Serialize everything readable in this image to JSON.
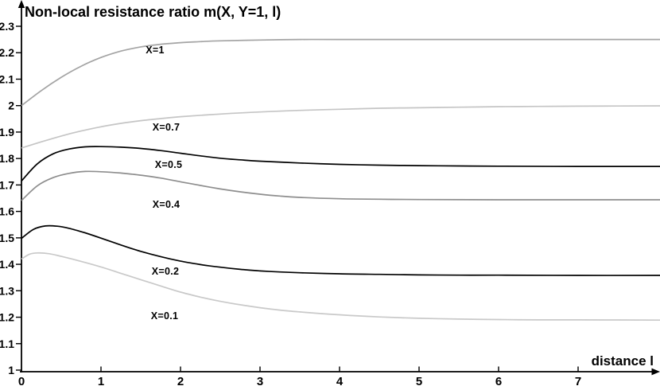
{
  "colors": {
    "background": "#ffffff",
    "axis": "#000000",
    "text": "#000000"
  },
  "chart_data": {
    "type": "line",
    "title": "Non-local resistance ratio m(X, Y=1, l)",
    "xlabel": "distance l",
    "ylabel": "",
    "grid": false,
    "legend": "inline-labels",
    "x_axis": {
      "range": [
        0,
        8.03
      ],
      "ticks": [
        0,
        1,
        2,
        3,
        4,
        5,
        6,
        7
      ]
    },
    "y_axis": {
      "range": [
        1,
        2.3
      ],
      "ticks": [
        {
          "v": 1.0,
          "label": "1"
        },
        {
          "v": 1.1,
          "label": "1.1"
        },
        {
          "v": 1.2,
          "label": "1.2"
        },
        {
          "v": 1.3,
          "label": "1.3"
        },
        {
          "v": 1.4,
          "label": "1.4"
        },
        {
          "v": 1.5,
          "label": "1.5"
        },
        {
          "v": 1.6,
          "label": "1.6"
        },
        {
          "v": 1.7,
          "label": "1.7"
        },
        {
          "v": 1.8,
          "label": "1.8"
        },
        {
          "v": 1.9,
          "label": "1.9"
        },
        {
          "v": 2.0,
          "label": "2"
        },
        {
          "v": 2.1,
          "label": "2.1"
        },
        {
          "v": 2.2,
          "label": "2.2"
        },
        {
          "v": 2.3,
          "label": "2.3"
        }
      ]
    },
    "series": [
      {
        "name": "X=1",
        "label": "X=1",
        "color": "#a4a4a4",
        "label_pos": [
          1.68,
          2.21
        ],
        "points": [
          [
            0,
            2.0
          ],
          [
            0.25,
            2.057
          ],
          [
            0.5,
            2.107
          ],
          [
            0.75,
            2.149
          ],
          [
            1,
            2.182
          ],
          [
            1.25,
            2.206
          ],
          [
            1.5,
            2.222
          ],
          [
            1.75,
            2.232
          ],
          [
            2,
            2.238
          ],
          [
            2.25,
            2.242
          ],
          [
            2.5,
            2.245
          ],
          [
            3,
            2.248
          ],
          [
            3.5,
            2.25
          ],
          [
            4,
            2.25
          ],
          [
            5,
            2.25
          ],
          [
            6,
            2.25
          ],
          [
            7,
            2.25
          ],
          [
            8.05,
            2.25
          ]
        ]
      },
      {
        "name": "X=0.7",
        "label": "X=0.7",
        "color": "#c5c5c5",
        "label_pos": [
          1.82,
          1.918
        ],
        "points": [
          [
            0,
            1.84
          ],
          [
            0.25,
            1.863
          ],
          [
            0.5,
            1.885
          ],
          [
            0.75,
            1.904
          ],
          [
            1,
            1.92
          ],
          [
            1.25,
            1.933
          ],
          [
            1.5,
            1.943
          ],
          [
            1.75,
            1.951
          ],
          [
            2,
            1.958
          ],
          [
            2.5,
            1.968
          ],
          [
            3,
            1.976
          ],
          [
            3.5,
            1.982
          ],
          [
            4,
            1.986
          ],
          [
            4.5,
            1.99
          ],
          [
            5,
            1.992
          ],
          [
            5.5,
            1.994
          ],
          [
            6,
            1.996
          ],
          [
            6.5,
            1.997
          ],
          [
            7,
            1.998
          ],
          [
            8.05,
            1.999
          ]
        ]
      },
      {
        "name": "X=0.5",
        "label": "X=0.5",
        "color": "#000000",
        "label_pos": [
          1.85,
          1.776
        ],
        "points": [
          [
            0,
            1.715
          ],
          [
            0.2,
            1.78
          ],
          [
            0.4,
            1.818
          ],
          [
            0.6,
            1.836
          ],
          [
            0.8,
            1.844
          ],
          [
            1,
            1.845
          ],
          [
            1.25,
            1.843
          ],
          [
            1.5,
            1.838
          ],
          [
            1.75,
            1.83
          ],
          [
            2,
            1.82
          ],
          [
            2.25,
            1.81
          ],
          [
            2.5,
            1.801
          ],
          [
            2.75,
            1.795
          ],
          [
            3,
            1.79
          ],
          [
            3.5,
            1.783
          ],
          [
            4,
            1.778
          ],
          [
            4.5,
            1.775
          ],
          [
            5,
            1.773
          ],
          [
            5.5,
            1.772
          ],
          [
            6,
            1.771
          ],
          [
            7,
            1.77
          ],
          [
            8.05,
            1.77
          ]
        ]
      },
      {
        "name": "X=0.4",
        "label": "X=0.4",
        "color": "#8e8e8e",
        "label_pos": [
          1.82,
          1.626
        ],
        "points": [
          [
            0,
            1.641
          ],
          [
            0.2,
            1.697
          ],
          [
            0.4,
            1.728
          ],
          [
            0.6,
            1.744
          ],
          [
            0.8,
            1.751
          ],
          [
            1,
            1.75
          ],
          [
            1.25,
            1.745
          ],
          [
            1.5,
            1.737
          ],
          [
            1.75,
            1.726
          ],
          [
            2,
            1.712
          ],
          [
            2.25,
            1.698
          ],
          [
            2.5,
            1.685
          ],
          [
            2.75,
            1.674
          ],
          [
            3,
            1.665
          ],
          [
            3.25,
            1.658
          ],
          [
            3.5,
            1.653
          ],
          [
            4,
            1.648
          ],
          [
            4.5,
            1.646
          ],
          [
            5,
            1.645
          ],
          [
            6,
            1.644
          ],
          [
            7,
            1.644
          ],
          [
            8.05,
            1.644
          ]
        ]
      },
      {
        "name": "X=0.2",
        "label": "X=0.2",
        "color": "#000000",
        "label_pos": [
          1.81,
          1.373
        ],
        "points": [
          [
            0,
            1.498
          ],
          [
            0.15,
            1.532
          ],
          [
            0.3,
            1.545
          ],
          [
            0.45,
            1.544
          ],
          [
            0.6,
            1.536
          ],
          [
            0.8,
            1.519
          ],
          [
            1,
            1.499
          ],
          [
            1.25,
            1.473
          ],
          [
            1.5,
            1.449
          ],
          [
            1.75,
            1.429
          ],
          [
            2,
            1.412
          ],
          [
            2.25,
            1.399
          ],
          [
            2.5,
            1.389
          ],
          [
            2.75,
            1.381
          ],
          [
            3,
            1.375
          ],
          [
            3.25,
            1.371
          ],
          [
            3.5,
            1.368
          ],
          [
            4,
            1.364
          ],
          [
            4.5,
            1.362
          ],
          [
            5,
            1.36
          ],
          [
            5.5,
            1.359
          ],
          [
            6,
            1.359
          ],
          [
            7,
            1.358
          ],
          [
            8.05,
            1.358
          ]
        ]
      },
      {
        "name": "X=0.1",
        "label": "X=0.1",
        "color": "#c9c9c9",
        "label_pos": [
          1.8,
          1.205
        ],
        "points": [
          [
            0,
            1.42
          ],
          [
            0.1,
            1.438
          ],
          [
            0.2,
            1.443
          ],
          [
            0.35,
            1.44
          ],
          [
            0.5,
            1.43
          ],
          [
            0.75,
            1.411
          ],
          [
            1,
            1.39
          ],
          [
            1.25,
            1.366
          ],
          [
            1.5,
            1.342
          ],
          [
            1.75,
            1.318
          ],
          [
            2,
            1.295
          ],
          [
            2.25,
            1.276
          ],
          [
            2.5,
            1.26
          ],
          [
            2.75,
            1.247
          ],
          [
            3,
            1.236
          ],
          [
            3.25,
            1.227
          ],
          [
            3.5,
            1.22
          ],
          [
            3.75,
            1.214
          ],
          [
            4,
            1.209
          ],
          [
            4.5,
            1.201
          ],
          [
            5,
            1.196
          ],
          [
            5.5,
            1.193
          ],
          [
            6,
            1.191
          ],
          [
            6.5,
            1.19
          ],
          [
            7,
            1.19
          ],
          [
            8.05,
            1.189
          ]
        ]
      }
    ]
  }
}
